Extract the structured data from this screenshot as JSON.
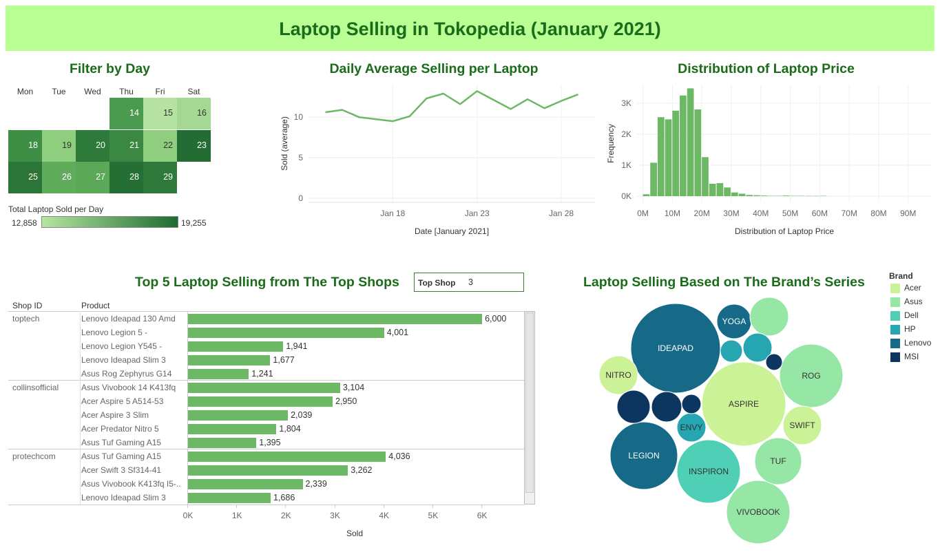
{
  "dashboard": {
    "title": "Laptop Selling in Tokopedia (January 2021)"
  },
  "filter_by_day": {
    "title": "Filter by Day",
    "weekdays": [
      "Mon",
      "Tue",
      "Wed",
      "Thu",
      "Fri",
      "Sat"
    ],
    "days": [
      {
        "label": "14",
        "weekday": "Thu",
        "week": 0,
        "color": "#4a9a50",
        "text_color": "#ffffff"
      },
      {
        "label": "15",
        "weekday": "Fri",
        "week": 0,
        "color": "#b5e1a2",
        "text_color": "#333333"
      },
      {
        "label": "16",
        "weekday": "Sat",
        "week": 0,
        "color": "#a4d893",
        "text_color": "#333333"
      },
      {
        "label": "18",
        "weekday": "Mon",
        "week": 1,
        "color": "#3f8e46",
        "text_color": "#ffffff"
      },
      {
        "label": "19",
        "weekday": "Tue",
        "week": 1,
        "color": "#8fcd7f",
        "text_color": "#333333"
      },
      {
        "label": "20",
        "weekday": "Wed",
        "week": 1,
        "color": "#2e7a3a",
        "text_color": "#ffffff"
      },
      {
        "label": "21",
        "weekday": "Thu",
        "week": 1,
        "color": "#3a8842",
        "text_color": "#ffffff"
      },
      {
        "label": "22",
        "weekday": "Fri",
        "week": 1,
        "color": "#8fcd7f",
        "text_color": "#333333"
      },
      {
        "label": "23",
        "weekday": "Sat",
        "week": 1,
        "color": "#236d34",
        "text_color": "#ffffff"
      },
      {
        "label": "25",
        "weekday": "Mon",
        "week": 2,
        "color": "#2b7538",
        "text_color": "#ffffff"
      },
      {
        "label": "26",
        "weekday": "Tue",
        "week": 2,
        "color": "#5fad5c",
        "text_color": "#ffffff"
      },
      {
        "label": "27",
        "weekday": "Wed",
        "week": 2,
        "color": "#5aa858",
        "text_color": "#ffffff"
      },
      {
        "label": "28",
        "weekday": "Thu",
        "week": 2,
        "color": "#256f35",
        "text_color": "#ffffff"
      },
      {
        "label": "29",
        "weekday": "Fri",
        "week": 2,
        "color": "#2f7a3a",
        "text_color": "#ffffff"
      }
    ],
    "legend": {
      "title": "Total Laptop Sold per Day",
      "min": "12,858",
      "max": "19,255",
      "color_min": "#b5e6a0",
      "color_max": "#1e6b31"
    }
  },
  "colors": {
    "accent": "#1a6b1a",
    "banner": "#b9ff94",
    "bar": "#6db865"
  },
  "chart_data": [
    {
      "type": "line",
      "title": "Daily Average Selling per Laptop",
      "xlabel": "Date [January 2021]",
      "ylabel": "Sold (average)",
      "x": [
        "2021-01-14",
        "2021-01-15",
        "2021-01-16",
        "2021-01-18",
        "2021-01-19",
        "2021-01-20",
        "2021-01-21",
        "2021-01-22",
        "2021-01-23",
        "2021-01-25",
        "2021-01-26",
        "2021-01-27",
        "2021-01-28",
        "2021-01-29"
      ],
      "y": [
        10.6,
        10.9,
        10.0,
        9.5,
        10.1,
        12.3,
        12.9,
        11.6,
        13.2,
        11.0,
        12.2,
        11.1,
        12.0,
        12.8
      ],
      "ylim": [
        -0.5,
        14
      ],
      "yticks": [
        "0",
        "5",
        "10"
      ],
      "xticks": [
        "Jan 18",
        "Jan 23",
        "Jan 28"
      ],
      "grid": true
    },
    {
      "type": "bar",
      "subtype": "histogram",
      "title": "Distribution of Laptop Price",
      "xlabel": "Distribution of Laptop Price",
      "ylabel": "Frequency",
      "bin_width": 2500000,
      "bin_starts": [
        0,
        2500000,
        5000000,
        7500000,
        10000000,
        12500000,
        15000000,
        17500000,
        20000000,
        22500000,
        25000000,
        27500000,
        30000000,
        32500000,
        35000000,
        37500000,
        40000000,
        42500000,
        45000000,
        47500000,
        50000000,
        52500000,
        55000000,
        57500000,
        60000000
      ],
      "values": [
        60,
        1080,
        2550,
        2480,
        2760,
        3250,
        3480,
        2800,
        1260,
        400,
        420,
        280,
        120,
        80,
        40,
        30,
        20,
        10,
        10,
        20,
        10,
        10,
        8,
        8,
        10
      ],
      "xticks": [
        "0M",
        "10M",
        "20M",
        "30M",
        "40M",
        "50M",
        "60M",
        "70M",
        "80M",
        "90M"
      ],
      "yticks": [
        "0K",
        "1K",
        "2K",
        "3K"
      ],
      "grid": true
    },
    {
      "type": "bar",
      "orientation": "horizontal",
      "title": "Top 5 Laptop Selling from The Top Shops",
      "xlabel": "Sold",
      "columns": [
        "Shop ID",
        "Product"
      ],
      "xlim": [
        0,
        6800
      ],
      "xticks": [
        "0K",
        "1K",
        "2K",
        "3K",
        "4K",
        "5K",
        "6K"
      ],
      "groups": [
        {
          "shop": "toptech",
          "rows": [
            {
              "product": "Lenovo Ideapad 130 Amd",
              "value": 6000,
              "label": "6,000"
            },
            {
              "product": "Lenovo Legion 5 -",
              "value": 4001,
              "label": "4,001"
            },
            {
              "product": "Lenovo Legion Y545 -",
              "value": 1941,
              "label": "1,941"
            },
            {
              "product": "Lenovo Ideapad Slim 3",
              "value": 1677,
              "label": "1,677"
            },
            {
              "product": "Asus Rog Zephyrus G14",
              "value": 1241,
              "label": "1,241"
            }
          ]
        },
        {
          "shop": "collinsofficial",
          "rows": [
            {
              "product": "Asus Vivobook 14 K413fq",
              "value": 3104,
              "label": "3,104"
            },
            {
              "product": "Acer Aspire 5 A514-53",
              "value": 2950,
              "label": "2,950"
            },
            {
              "product": "Acer Aspire 3 Slim",
              "value": 2039,
              "label": "2,039"
            },
            {
              "product": "Acer Predator Nitro 5",
              "value": 1804,
              "label": "1,804"
            },
            {
              "product": "Asus Tuf Gaming A15",
              "value": 1395,
              "label": "1,395"
            }
          ]
        },
        {
          "shop": "protechcom",
          "rows": [
            {
              "product": "Asus Tuf Gaming A15",
              "value": 4036,
              "label": "4,036"
            },
            {
              "product": "Acer Swift 3 Sf314-41",
              "value": 3262,
              "label": "3,262"
            },
            {
              "product": "Asus Vivobook K413fq I5-..",
              "value": 2339,
              "label": "2,339"
            },
            {
              "product": "Lenovo Ideapad Slim 3",
              "value": 1686,
              "label": "1,686"
            }
          ]
        }
      ]
    },
    {
      "type": "scatter",
      "subtype": "packed-bubble",
      "title": "Laptop Selling Based on The Brand’s Series",
      "legend_title": "Brand",
      "brands": [
        {
          "name": "Acer",
          "color": "#ccf297"
        },
        {
          "name": "Asus",
          "color": "#96e6a6"
        },
        {
          "name": "Dell",
          "color": "#4ecfb6"
        },
        {
          "name": "HP",
          "color": "#26a6b1"
        },
        {
          "name": "Lenovo",
          "color": "#166a87"
        },
        {
          "name": "MSI",
          "color": "#0c3560"
        }
      ],
      "bubbles": [
        {
          "label": "IDEAPAD",
          "brand": "Lenovo",
          "size": 4225
        },
        {
          "label": "ASPIRE",
          "brand": "Acer",
          "size": 3721
        },
        {
          "label": "INSPIRON",
          "brand": "Dell",
          "size": 2116
        },
        {
          "label": "LEGION",
          "brand": "Lenovo",
          "size": 2401
        },
        {
          "label": "ROG",
          "brand": "Asus",
          "size": 2116
        },
        {
          "label": "VIVOBOOK",
          "brand": "Asus",
          "size": 2116
        },
        {
          "label": "NITRO",
          "brand": "Acer",
          "size": 784
        },
        {
          "label": "TUF",
          "brand": "Asus",
          "size": 1156
        },
        {
          "label": "SWIFT",
          "brand": "Acer",
          "size": 784
        },
        {
          "label": "YOGA",
          "brand": "Lenovo",
          "size": 625
        },
        {
          "label": "ENVY",
          "brand": "HP",
          "size": 441
        },
        {
          "label": "",
          "brand": "Asus",
          "size": 784
        },
        {
          "label": "",
          "brand": "HP",
          "size": 441
        },
        {
          "label": "",
          "brand": "HP",
          "size": 256
        },
        {
          "label": "",
          "brand": "MSI",
          "size": 144
        },
        {
          "label": "",
          "brand": "MSI",
          "size": 484
        },
        {
          "label": "",
          "brand": "MSI",
          "size": 576
        },
        {
          "label": "",
          "brand": "MSI",
          "size": 196
        }
      ]
    }
  ],
  "top_shop_filter": {
    "label": "Top Shop",
    "value": "3"
  }
}
